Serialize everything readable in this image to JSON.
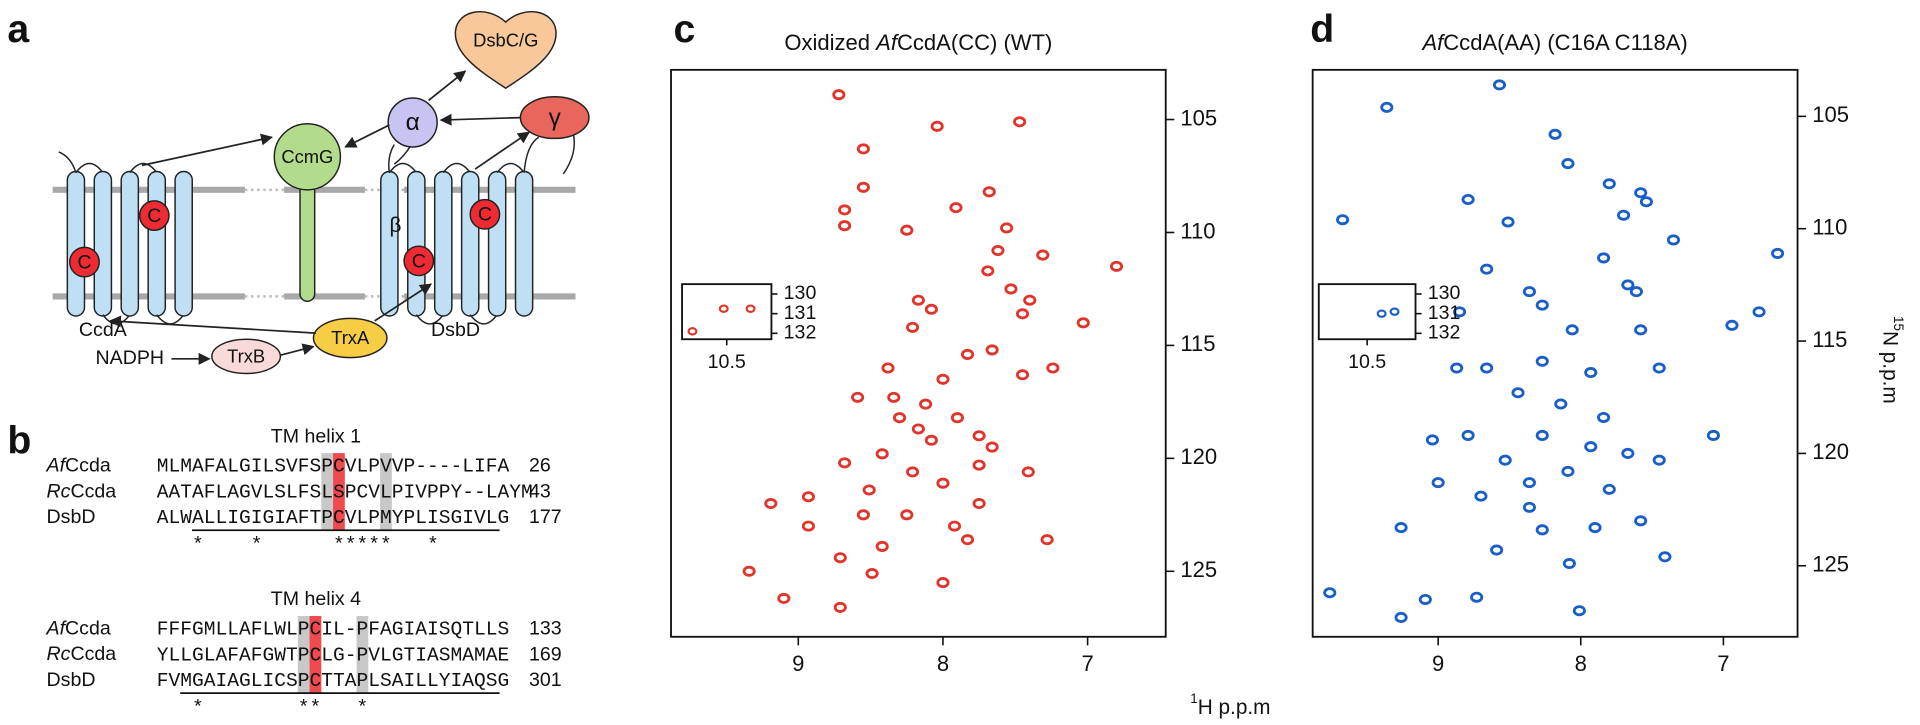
{
  "panels": [
    "a",
    "b",
    "c",
    "d"
  ],
  "diagram": {
    "ccda": "CcdA",
    "dsbd": "DsbD",
    "ccmg": "CcmG",
    "alpha": "α",
    "beta": "β",
    "gamma": "γ",
    "dsbcg": "DsbC/G",
    "nadph": "NADPH",
    "trxb": "TrxB",
    "trxa": "TrxA",
    "cys": [
      "C",
      "C",
      "C",
      "C"
    ]
  },
  "alignment": [
    {
      "title": "TM helix 1",
      "rows": [
        {
          "italic": "Af",
          "name": "Ccda",
          "sequence": "MLMAFALGILSVFSPCVLPVVP----LIFA",
          "end": 26
        },
        {
          "italic": "Rc",
          "name": "Ccda",
          "sequence": "AATAFLAGVLSLFSLSPCVLPIVPPY--LAYM",
          "end": 43
        },
        {
          "name": "DsbD",
          "sequence": "ALWALLIGIGIAFTPCVLPMYPLISGIVLG",
          "end": 177
        }
      ],
      "conservation": "   *    *      *****   *"
    },
    {
      "title": "TM helix 4",
      "rows": [
        {
          "italic": "Af",
          "name": "Ccda",
          "sequence": "FFFGMLLAFLWLPCIL-PFAGIAISQTLLS",
          "end": 133
        },
        {
          "italic": "Rc",
          "name": "Ccda",
          "sequence": "YLLGLAFAFGWTPCLG-PVLGTIASMAMAE",
          "end": 169
        },
        {
          "name": "DsbD",
          "sequence": "FVMGAIAGLICSPCTTAPLSAILLYIAQSG",
          "end": 301
        }
      ],
      "conservation": "   *        **   *"
    }
  ],
  "chart_data": [
    {
      "type": "scatter",
      "title_parts": [
        "Oxidized ",
        "Af",
        "CcdA(CC) (WT)"
      ],
      "color": "#e0352b",
      "x_label_sup": "1",
      "x_label": "H p.p.m",
      "xlim": [
        9.88,
        6.46
      ],
      "ylim": [
        127.9,
        102.8
      ],
      "xticks": [
        9,
        8,
        7
      ],
      "yticks": [
        105,
        110,
        115,
        120,
        125
      ],
      "x": [
        8.72,
        8.04,
        7.47,
        8.55,
        7.68,
        8.55,
        7.91,
        8.68,
        7.56,
        8.25,
        8.68,
        7.31,
        7.62,
        7.69,
        7.53,
        8.08,
        8.17,
        7.45,
        7.4,
        6.8,
        7.03,
        8.21,
        7.66,
        7.83,
        8.38,
        8.59,
        8.0,
        7.45,
        7.24,
        8.12,
        8.3,
        7.9,
        7.75,
        8.08,
        8.42,
        8.68,
        8.21,
        7.75,
        7.41,
        8.93,
        8.51,
        8.0,
        7.75,
        8.25,
        9.19,
        8.55,
        8.42,
        7.83,
        7.28,
        8.71,
        9.34,
        8.49,
        8.0,
        8.71,
        9.1,
        7.92,
        8.93,
        8.17,
        7.66,
        8.34
      ],
      "values": [
        103.9,
        105.3,
        105.1,
        106.3,
        108.2,
        108.0,
        108.9,
        109.0,
        109.8,
        109.9,
        109.7,
        111.0,
        110.8,
        111.7,
        112.5,
        113.4,
        113.0,
        113.6,
        113.0,
        111.5,
        114.0,
        114.2,
        115.2,
        115.4,
        116.0,
        117.3,
        116.5,
        116.3,
        116.0,
        117.6,
        118.2,
        118.2,
        119.0,
        119.2,
        119.8,
        120.2,
        120.6,
        120.3,
        120.6,
        121.7,
        121.4,
        121.1,
        122.0,
        122.5,
        122.0,
        122.5,
        123.9,
        123.6,
        123.6,
        124.4,
        125.0,
        125.1,
        125.5,
        126.6,
        126.2,
        123.0,
        123.0,
        118.7,
        119.5,
        117.3
      ],
      "inset": {
        "xlim": [
          10.8,
          10.2
        ],
        "ylim": [
          132.3,
          129.5
        ],
        "xticks": [
          10.5
        ],
        "yticks": [
          130,
          131,
          132
        ],
        "x": [
          10.73,
          10.52,
          10.34
        ],
        "values": [
          131.9,
          130.75,
          130.75
        ]
      }
    },
    {
      "type": "scatter",
      "title_parts": [
        "Af",
        "CcdA(AA) (C16A C118A)"
      ],
      "color": "#1a5fc8",
      "y_label_sup": "15",
      "y_label": "N p.p.m",
      "xlim": [
        9.88,
        6.48
      ],
      "ylim": [
        128.16,
        102.93
      ],
      "xticks": [
        9,
        8,
        7
      ],
      "yticks": [
        105,
        110,
        115,
        120,
        125
      ],
      "x": [
        8.57,
        9.36,
        8.18,
        8.09,
        7.8,
        7.54,
        7.58,
        8.79,
        8.51,
        9.67,
        7.7,
        7.35,
        7.84,
        6.62,
        8.66,
        8.36,
        8.27,
        7.67,
        7.61,
        6.75,
        6.94,
        8.85,
        8.06,
        7.58,
        8.27,
        8.66,
        7.93,
        7.45,
        8.44,
        8.14,
        7.84,
        8.27,
        7.93,
        8.79,
        9.04,
        8.53,
        7.67,
        7.45,
        8.09,
        8.36,
        7.8,
        9.0,
        8.7,
        9.26,
        8.27,
        7.9,
        7.58,
        8.59,
        8.08,
        7.41,
        9.09,
        8.73,
        8.01,
        9.76,
        9.26,
        8.36,
        7.07,
        8.87
      ],
      "values": [
        103.6,
        104.6,
        105.8,
        107.1,
        108.0,
        108.8,
        108.4,
        108.7,
        109.7,
        109.6,
        109.4,
        110.5,
        111.3,
        111.1,
        111.8,
        112.8,
        113.4,
        112.5,
        112.8,
        113.7,
        114.3,
        113.7,
        114.5,
        114.5,
        115.9,
        116.2,
        116.4,
        116.2,
        117.3,
        117.8,
        118.4,
        119.2,
        119.7,
        119.2,
        119.4,
        120.3,
        120.0,
        120.3,
        120.8,
        121.3,
        121.6,
        121.3,
        121.9,
        123.3,
        123.4,
        123.3,
        123.0,
        124.3,
        124.9,
        124.6,
        126.5,
        126.4,
        127.0,
        126.2,
        127.3,
        122.4,
        119.2,
        116.2
      ],
      "inset": {
        "xlim": [
          10.8,
          10.2
        ],
        "ylim": [
          132.3,
          129.5
        ],
        "xticks": [
          10.5
        ],
        "yticks": [
          130,
          131,
          132
        ],
        "x": [
          10.41,
          10.33
        ],
        "values": [
          131.0,
          130.9
        ]
      }
    }
  ]
}
